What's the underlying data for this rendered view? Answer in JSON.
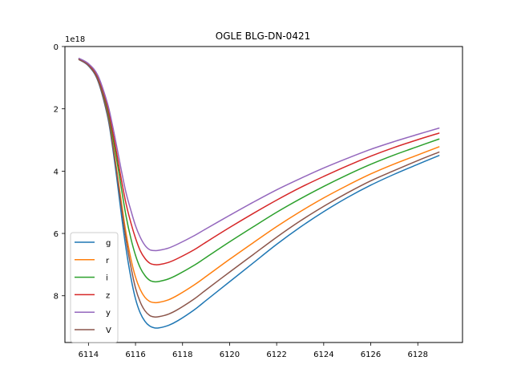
{
  "chart_data": {
    "type": "line",
    "title": "OGLE BLG-DN-0421",
    "xlabel": "",
    "ylabel": "",
    "y_offset_label": "1e18",
    "y_inverted": true,
    "xlim": [
      6113.0,
      6129.9
    ],
    "ylim": [
      9.5,
      0.0
    ],
    "x_ticks": [
      6114,
      6116,
      6118,
      6120,
      6122,
      6124,
      6126,
      6128
    ],
    "y_ticks": [
      0,
      2,
      4,
      6,
      8
    ],
    "grid": false,
    "legend_position": "lower-left",
    "x": [
      6113.6,
      6114.0,
      6114.4,
      6114.8,
      6115.0,
      6115.2,
      6115.4,
      6115.6,
      6115.8,
      6116.0,
      6116.2,
      6116.4,
      6116.6,
      6116.8,
      6117.0,
      6117.4,
      6117.8,
      6118.5,
      6119.0,
      6120.0,
      6121.0,
      6122.0,
      6123.0,
      6124.0,
      6125.0,
      6126.0,
      6127.0,
      6128.0,
      6128.9
    ],
    "series": [
      {
        "name": "g",
        "color": "#1f77b4",
        "values": [
          0.42,
          0.62,
          1.1,
          2.2,
          3.1,
          4.2,
          5.4,
          6.5,
          7.4,
          8.1,
          8.55,
          8.82,
          8.97,
          9.03,
          9.03,
          8.95,
          8.8,
          8.45,
          8.15,
          7.55,
          6.95,
          6.35,
          5.8,
          5.3,
          4.85,
          4.45,
          4.1,
          3.78,
          3.5
        ]
      },
      {
        "name": "r",
        "color": "#ff7f0e",
        "values": [
          0.41,
          0.6,
          1.05,
          2.1,
          2.95,
          3.95,
          5.0,
          6.0,
          6.8,
          7.4,
          7.8,
          8.05,
          8.18,
          8.22,
          8.21,
          8.13,
          7.98,
          7.65,
          7.38,
          6.83,
          6.3,
          5.78,
          5.3,
          4.86,
          4.46,
          4.09,
          3.77,
          3.48,
          3.22
        ]
      },
      {
        "name": "i",
        "color": "#2ca02c",
        "values": [
          0.4,
          0.58,
          1.0,
          1.98,
          2.75,
          3.62,
          4.55,
          5.45,
          6.15,
          6.7,
          7.1,
          7.35,
          7.5,
          7.55,
          7.54,
          7.46,
          7.32,
          7.02,
          6.77,
          6.27,
          5.79,
          5.32,
          4.89,
          4.49,
          4.12,
          3.78,
          3.48,
          3.21,
          2.97
        ]
      },
      {
        "name": "z",
        "color": "#d62728",
        "values": [
          0.4,
          0.57,
          0.97,
          1.9,
          2.62,
          3.43,
          4.28,
          5.05,
          5.65,
          6.15,
          6.55,
          6.8,
          6.95,
          7.0,
          7.0,
          6.93,
          6.8,
          6.52,
          6.28,
          5.81,
          5.36,
          4.93,
          4.53,
          4.17,
          3.83,
          3.52,
          3.24,
          2.99,
          2.78
        ]
      },
      {
        "name": "y",
        "color": "#9467bd",
        "values": [
          0.38,
          0.55,
          0.93,
          1.8,
          2.45,
          3.2,
          3.98,
          4.7,
          5.25,
          5.75,
          6.12,
          6.38,
          6.52,
          6.55,
          6.54,
          6.47,
          6.34,
          6.07,
          5.85,
          5.42,
          5.0,
          4.6,
          4.24,
          3.9,
          3.59,
          3.3,
          3.05,
          2.82,
          2.62
        ]
      },
      {
        "name": "V",
        "color": "#8c564b",
        "values": [
          0.42,
          0.61,
          1.08,
          2.15,
          3.02,
          4.05,
          5.15,
          6.2,
          7.05,
          7.75,
          8.2,
          8.48,
          8.63,
          8.68,
          8.67,
          8.59,
          8.44,
          8.1,
          7.81,
          7.24,
          6.68,
          6.12,
          5.6,
          5.13,
          4.7,
          4.31,
          3.98,
          3.66,
          3.39
        ]
      }
    ]
  }
}
